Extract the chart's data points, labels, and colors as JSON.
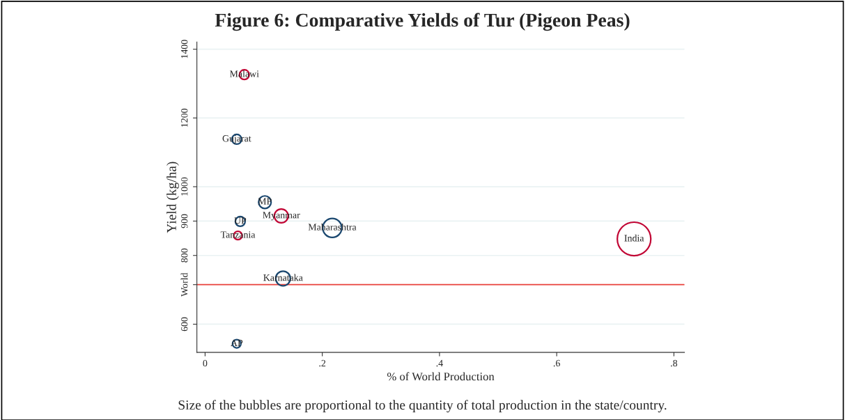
{
  "chart_data": {
    "type": "bubble",
    "title": "Figure 6: Comparative Yields of Tur (Pigeon Peas)",
    "xlabel": "% of World Production",
    "ylabel": "Yield (kg/ha)",
    "series": [
      {
        "color": "#1a476f",
        "x": [
          0.054,
          0.102,
          0.06,
          0.217,
          0.133,
          0.054
        ],
        "values": [
          1138,
          955,
          899,
          880,
          733,
          543
        ],
        "sizes": [
          0.085,
          0.14,
          0.085,
          0.32,
          0.19,
          0.0625
        ]
      },
      {
        "color": "#c10534",
        "x": [
          0.067,
          0.13,
          0.056,
          0.732
        ],
        "values": [
          1326,
          915,
          858,
          848
        ],
        "sizes": [
          0.085,
          0.17,
          0.0625,
          1
        ]
      }
    ],
    "annotations": [
      {
        "text": "Gujarat",
        "x": 0.054,
        "y": 1138
      },
      {
        "text": "MP",
        "x": 0.102,
        "y": 955
      },
      {
        "text": "UP",
        "x": 0.06,
        "y": 899
      },
      {
        "text": "Maharashtra",
        "x": 0.217,
        "y": 880
      },
      {
        "text": "Karnataka",
        "x": 0.133,
        "y": 733
      },
      {
        "text": "AP",
        "x": 0.054,
        "y": 543
      },
      {
        "text": "Malawi",
        "x": 0.067,
        "y": 1326
      },
      {
        "text": "Myanmar",
        "x": 0.13,
        "y": 915
      },
      {
        "text": "Tanzania",
        "x": 0.056,
        "y": 858
      },
      {
        "text": "India",
        "x": 0.732,
        "y": 848
      },
      "Size of the bubbles are proportional to the quantity of total production in the state/country."
    ],
    "ref_lines": [
      {
        "axis": "y",
        "value": 715,
        "label": "World",
        "color": "#e8413a"
      }
    ],
    "xlim": [
      -0.014,
      0.818
    ],
    "xticks": [
      {
        "value": 0,
        "label": "0"
      },
      {
        "value": 0.2,
        "label": ".2"
      },
      {
        "value": 0.4,
        "label": ".4"
      },
      {
        "value": 0.6,
        "label": ".6"
      },
      {
        "value": 0.8,
        "label": ".8"
      }
    ],
    "ylim": [
      518,
      1421
    ],
    "yticks": [
      600,
      800,
      900,
      1000,
      1200,
      1400
    ],
    "grid": "y",
    "legend": false
  }
}
